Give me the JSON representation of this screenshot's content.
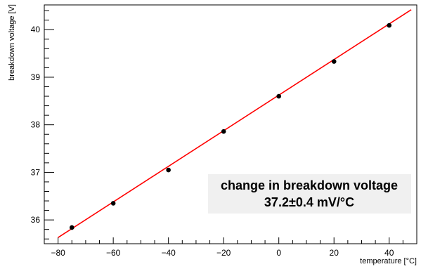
{
  "chart_data": {
    "type": "scatter",
    "xlabel": "temperature [°C]",
    "ylabel": "breakdown voltage [V]",
    "xlim": [
      -85,
      50
    ],
    "ylim": [
      35.5,
      40.52
    ],
    "xticks": [
      -80,
      -60,
      -40,
      -20,
      0,
      20,
      40
    ],
    "yticks": [
      36,
      37,
      38,
      39,
      40
    ],
    "xtick_labels": [
      "−80",
      "−60",
      "−40",
      "−20",
      "0",
      "20",
      "40"
    ],
    "ytick_labels": [
      "36",
      "37",
      "38",
      "39",
      "40"
    ],
    "grid": false,
    "series": [
      {
        "x": [
          -75,
          -60,
          -40,
          -20,
          0,
          20,
          40
        ],
        "y": [
          35.84,
          36.35,
          37.05,
          37.86,
          38.6,
          39.33,
          40.09
        ],
        "yerr": [
          0.05,
          0.03,
          0.03,
          0.03,
          0.03,
          0.03,
          0.04
        ],
        "color": "#000000"
      }
    ],
    "fit": {
      "type": "linear",
      "color": "#ff0000",
      "x": [
        -80,
        48
      ],
      "y": [
        35.63,
        40.42
      ]
    },
    "annotation": {
      "line1": "change in breakdown voltage",
      "line2": "37.2±0.4 mV/°C",
      "background": "#f0f0f0"
    }
  }
}
